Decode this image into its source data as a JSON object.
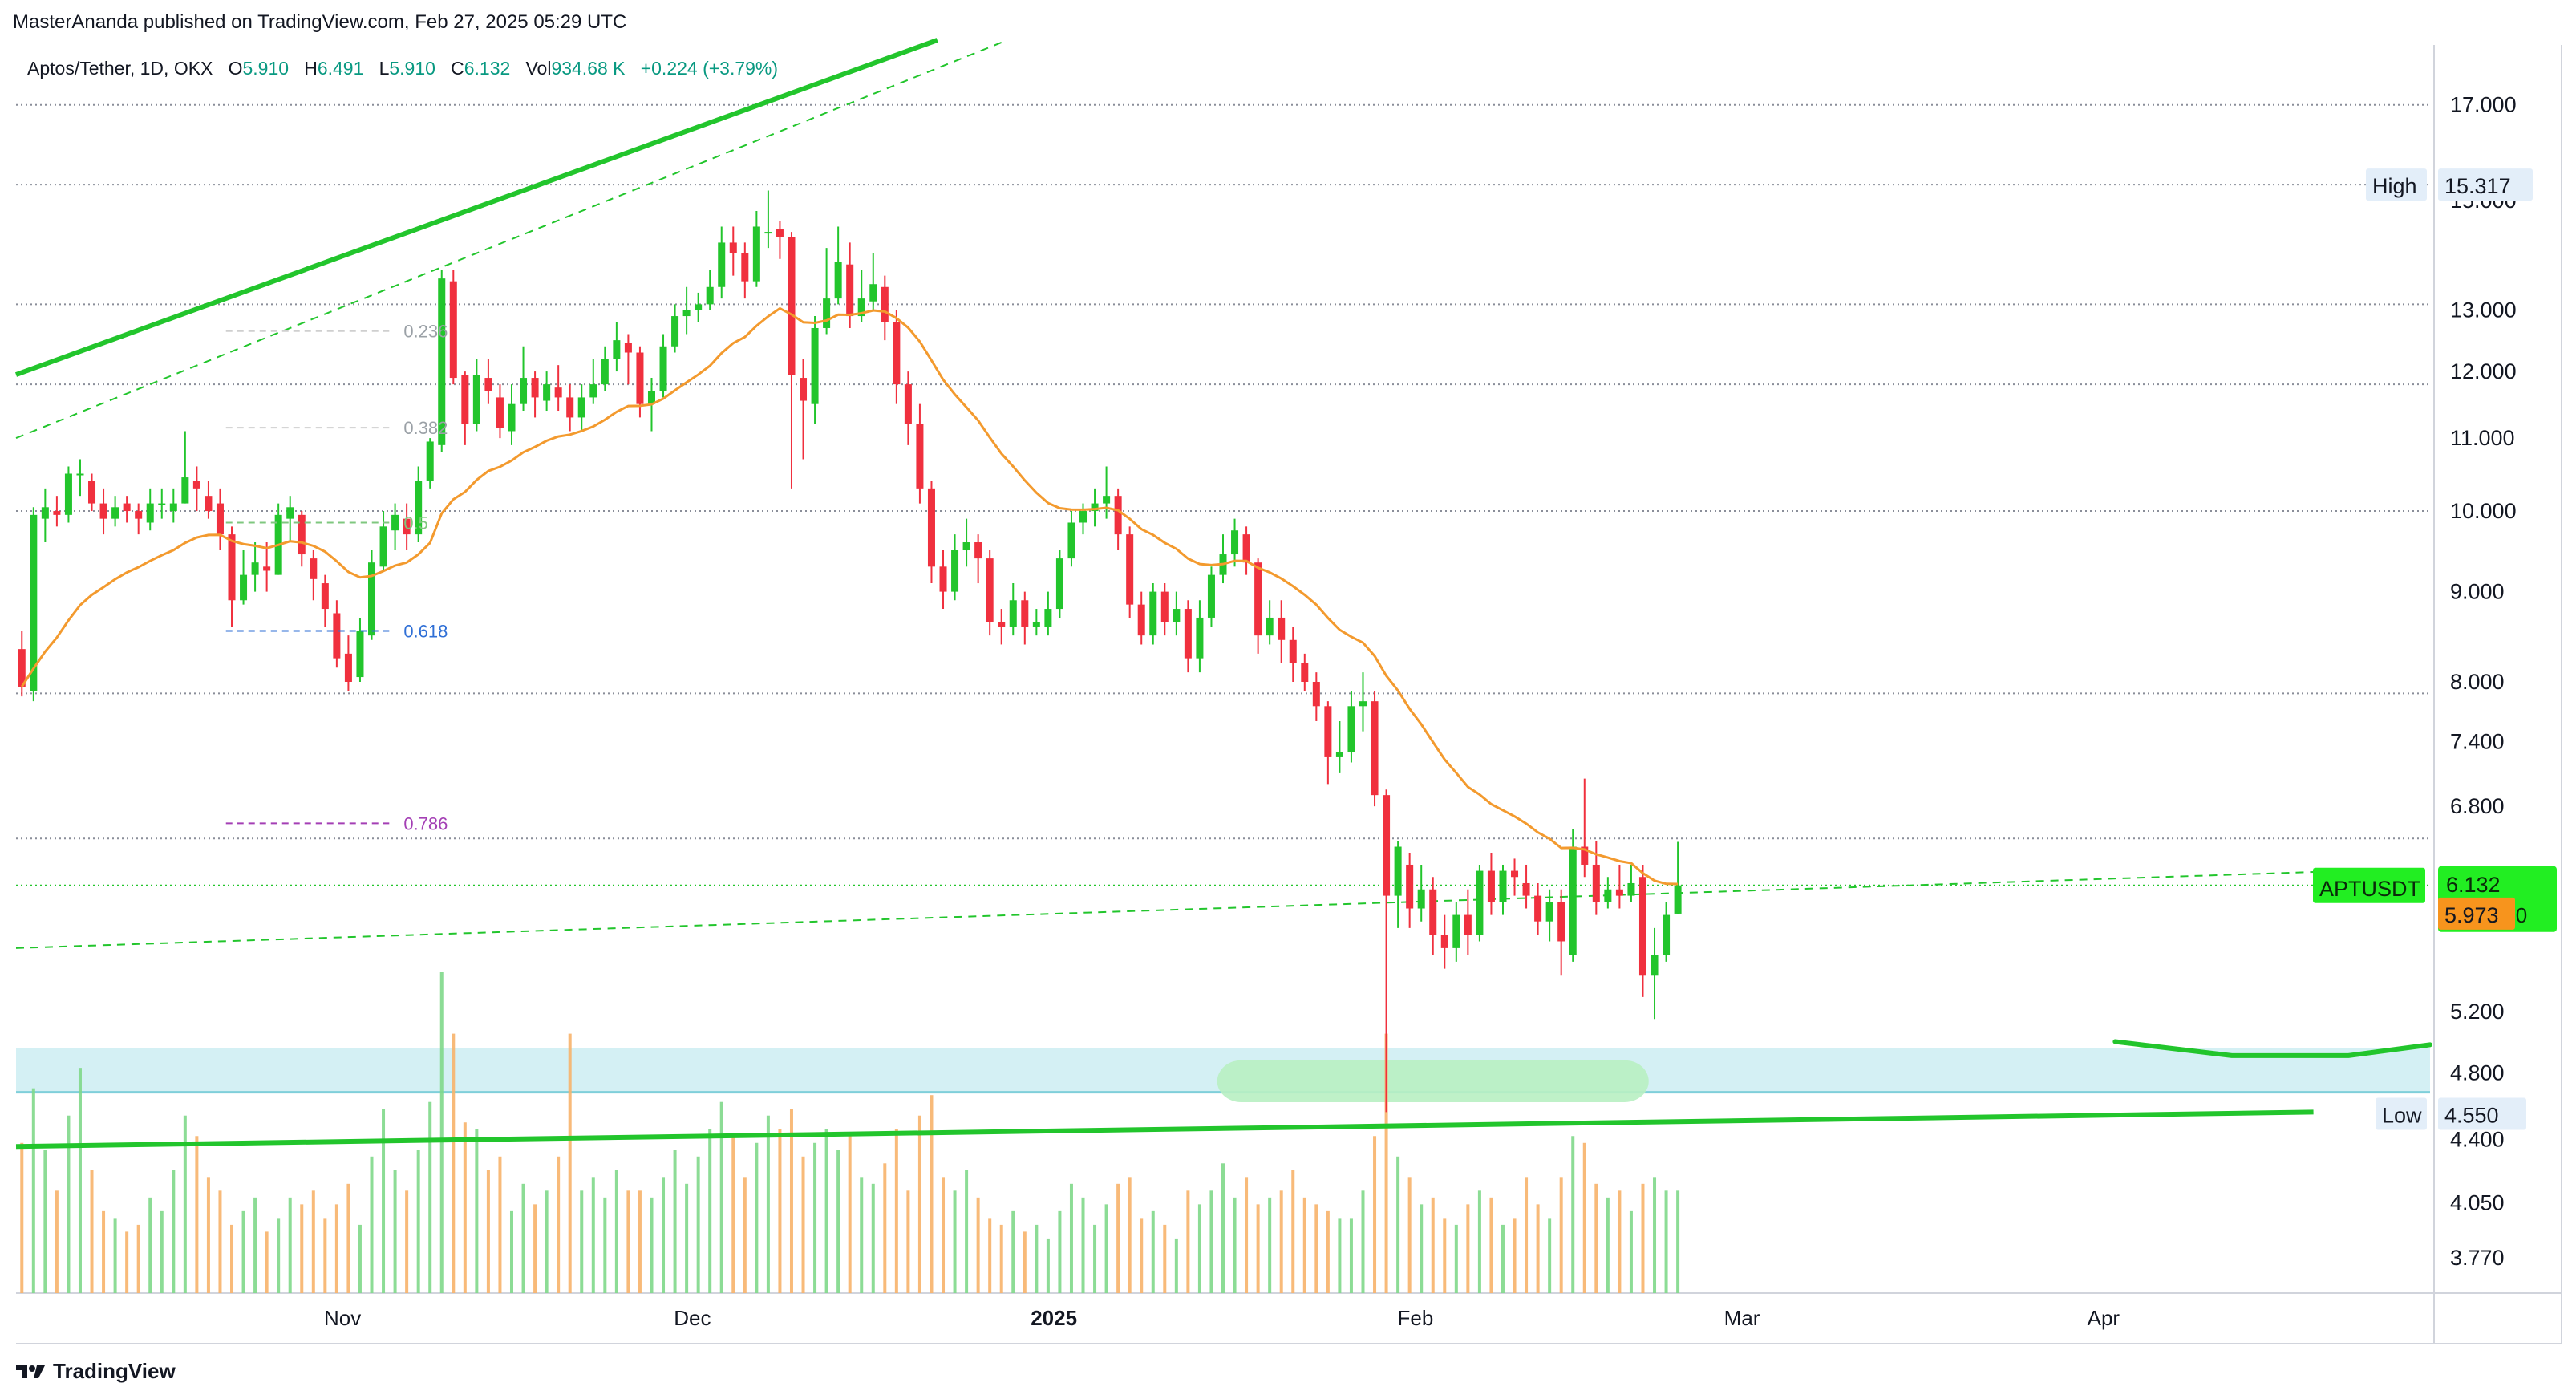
{
  "publisher_line": "MasterAnanda published on TradingView.com, Feb 27, 2025 05:29 UTC",
  "symbol": {
    "name": "Aptos/Tether, 1D, OKX",
    "open_label": "O",
    "open": "5.910",
    "high_label": "H",
    "high": "6.491",
    "low_label": "L",
    "low": "5.910",
    "close_label": "C",
    "close": "6.132",
    "volume_label": "Vol",
    "volume": "934.68 K",
    "change": "+0.224 (+3.79%)"
  },
  "colors": {
    "up": "#22c52c",
    "down": "#f0303e",
    "ema": "#f39a2e",
    "trendline": "#22c52c",
    "support_zone": "#d4f0f4",
    "support_line": "#7fcfda",
    "target_zone": "#b8f0c2",
    "fib_label": "#8fbf8f",
    "fib_0618": "#2f6fd6",
    "fib_0786": "#a43fb5",
    "price_tag_bg": "#22ee22",
    "ema_tag_bg": "#f7941d",
    "hl_tag_bg": "#e3eef9"
  },
  "footer": {
    "brand": "TradingView"
  },
  "chart_data": {
    "type": "candlestick",
    "symbol": "APTUSDT",
    "timeframe": "1D",
    "scale": "log",
    "ylim": [
      3.6,
      18.5
    ],
    "x_start": "2024-10-04",
    "x_end": "2025-04-29",
    "y_tick_labels": [
      "17.000",
      "15.000",
      "13.000",
      "12.000",
      "11.000",
      "10.000",
      "9.000",
      "8.000",
      "7.400",
      "6.800",
      "5.200",
      "4.800",
      "4.400",
      "4.050",
      "3.770"
    ],
    "x_tick_labels": [
      {
        "date": "2024-11-01",
        "label": "Nov"
      },
      {
        "date": "2024-12-01",
        "label": "Dec"
      },
      {
        "date": "2025-01-01",
        "label": "2025",
        "bold": true
      },
      {
        "date": "2025-02-01",
        "label": "Feb"
      },
      {
        "date": "2025-03-01",
        "label": "Mar"
      },
      {
        "date": "2025-04-01",
        "label": "Apr"
      }
    ],
    "horizontal_levels": [
      17.0,
      15.317,
      13.1,
      11.8,
      10.0,
      7.88,
      6.52,
      6.132
    ],
    "fib_levels": [
      {
        "label": "0.236",
        "price": 12.65,
        "color": "#cfcfcf"
      },
      {
        "label": "0.382",
        "price": 11.15,
        "color": "#cfcfcf"
      },
      {
        "label": "0.5",
        "price": 9.85,
        "color": "#7fc77f"
      },
      {
        "label": "0.618",
        "price": 8.55,
        "color": "#2f6fd6"
      },
      {
        "label": "0.786",
        "price": 6.65,
        "color": "#a43fb5"
      }
    ],
    "price_tags": {
      "high": {
        "label": "High",
        "value": "15.317"
      },
      "low": {
        "label": "Low",
        "value": "4.550"
      },
      "last": {
        "label": "APTUSDT",
        "value": "6.132",
        "countdown": "18:30:40"
      },
      "ema": {
        "value": "5.973"
      }
    },
    "support_zone": [
      4.68,
      4.96
    ],
    "target_zone": [
      4.62,
      4.88
    ],
    "target_zone_dates": [
      "2025-01-15",
      "2025-02-21"
    ],
    "trendlines": [
      {
        "style": "solid",
        "from": {
          "date": "2024-10-04",
          "price": 11.95
        },
        "to": {
          "date": "2024-12-22",
          "price": 18.5
        }
      },
      {
        "style": "dashed",
        "from": {
          "date": "2024-10-04",
          "price": 11.0
        },
        "to": {
          "date": "2024-12-28",
          "price": 18.5
        }
      },
      {
        "style": "dashed",
        "from": {
          "date": "2024-10-04",
          "price": 5.65
        },
        "to": {
          "date": "2025-04-22",
          "price": 6.25
        }
      },
      {
        "style": "solid",
        "from": {
          "date": "2024-10-04",
          "price": 4.36
        },
        "to": {
          "date": "2025-04-19",
          "price": 4.56
        }
      }
    ],
    "projection_curve": [
      {
        "date": "2025-04-02",
        "price": 5.0
      },
      {
        "date": "2025-04-12",
        "price": 4.91
      },
      {
        "date": "2025-04-22",
        "price": 4.91
      },
      {
        "date": "2025-04-29",
        "price": 4.98
      }
    ],
    "candles": [
      [
        8.35,
        7.95,
        8.55,
        7.85,
        220
      ],
      [
        7.9,
        9.95,
        10.05,
        7.8,
        300
      ],
      [
        9.9,
        10.05,
        10.3,
        9.6,
        210
      ],
      [
        10.0,
        9.95,
        10.2,
        9.8,
        150
      ],
      [
        9.95,
        10.5,
        10.6,
        9.85,
        260
      ],
      [
        10.5,
        10.5,
        10.7,
        10.2,
        330
      ],
      [
        10.4,
        10.1,
        10.5,
        10.0,
        180
      ],
      [
        10.1,
        9.9,
        10.3,
        9.7,
        120
      ],
      [
        9.9,
        10.05,
        10.2,
        9.8,
        110
      ],
      [
        10.1,
        10.0,
        10.2,
        9.85,
        90
      ],
      [
        10.0,
        9.9,
        10.1,
        9.7,
        100
      ],
      [
        9.85,
        10.1,
        10.3,
        9.75,
        140
      ],
      [
        10.1,
        10.1,
        10.3,
        9.9,
        120
      ],
      [
        10.0,
        10.1,
        10.3,
        9.85,
        180
      ],
      [
        10.1,
        10.45,
        11.1,
        10.1,
        260
      ],
      [
        10.4,
        10.3,
        10.6,
        10.0,
        230
      ],
      [
        10.2,
        10.0,
        10.4,
        9.9,
        170
      ],
      [
        10.1,
        9.7,
        10.3,
        9.5,
        150
      ],
      [
        9.7,
        8.9,
        9.8,
        8.6,
        100
      ],
      [
        8.9,
        9.2,
        9.5,
        8.85,
        120
      ],
      [
        9.2,
        9.35,
        9.6,
        9.0,
        140
      ],
      [
        9.3,
        9.25,
        9.6,
        9.0,
        90
      ],
      [
        9.2,
        9.95,
        10.1,
        9.2,
        110
      ],
      [
        9.9,
        10.05,
        10.2,
        9.6,
        140
      ],
      [
        9.95,
        9.45,
        10.0,
        9.3,
        130
      ],
      [
        9.4,
        9.15,
        9.5,
        8.9,
        150
      ],
      [
        9.1,
        8.8,
        9.2,
        8.6,
        110
      ],
      [
        8.75,
        8.25,
        8.9,
        8.15,
        130
      ],
      [
        8.3,
        8.0,
        8.5,
        7.9,
        160
      ],
      [
        8.05,
        8.55,
        8.7,
        8.0,
        100
      ],
      [
        8.5,
        9.35,
        9.5,
        8.45,
        200
      ],
      [
        9.3,
        9.8,
        10.0,
        9.25,
        270
      ],
      [
        9.75,
        9.95,
        10.1,
        9.5,
        180
      ],
      [
        9.9,
        9.7,
        10.1,
        9.5,
        150
      ],
      [
        9.7,
        10.4,
        10.6,
        9.6,
        210
      ],
      [
        10.4,
        10.95,
        11.0,
        10.3,
        280
      ],
      [
        10.9,
        13.55,
        13.7,
        10.8,
        470
      ],
      [
        13.5,
        11.9,
        13.7,
        11.8,
        380
      ],
      [
        11.95,
        11.2,
        12.0,
        10.9,
        250
      ],
      [
        11.2,
        11.95,
        12.2,
        11.1,
        240
      ],
      [
        11.9,
        11.7,
        12.2,
        11.5,
        180
      ],
      [
        11.6,
        11.15,
        11.8,
        11.0,
        200
      ],
      [
        11.1,
        11.5,
        11.8,
        10.9,
        120
      ],
      [
        11.5,
        11.9,
        12.4,
        11.4,
        160
      ],
      [
        11.9,
        11.6,
        12.0,
        11.3,
        130
      ],
      [
        11.55,
        11.8,
        12.0,
        11.4,
        150
      ],
      [
        11.75,
        11.6,
        12.1,
        11.4,
        200
      ],
      [
        11.6,
        11.3,
        11.8,
        11.1,
        380
      ],
      [
        11.3,
        11.6,
        11.8,
        11.1,
        150
      ],
      [
        11.6,
        11.8,
        12.2,
        11.5,
        170
      ],
      [
        11.8,
        12.2,
        12.4,
        11.7,
        140
      ],
      [
        12.2,
        12.5,
        12.8,
        12.0,
        180
      ],
      [
        12.45,
        12.3,
        12.6,
        11.8,
        150
      ],
      [
        12.3,
        11.5,
        12.4,
        11.3,
        150
      ],
      [
        11.5,
        11.7,
        11.9,
        11.1,
        140
      ],
      [
        11.7,
        12.4,
        12.6,
        11.6,
        170
      ],
      [
        12.4,
        12.9,
        13.1,
        12.3,
        210
      ],
      [
        12.9,
        13.0,
        13.4,
        12.6,
        160
      ],
      [
        13.0,
        13.1,
        13.3,
        12.8,
        200
      ],
      [
        13.1,
        13.4,
        13.7,
        13.0,
        240
      ],
      [
        13.4,
        14.2,
        14.5,
        13.2,
        280
      ],
      [
        14.2,
        14.0,
        14.5,
        13.6,
        230
      ],
      [
        14.0,
        13.5,
        14.2,
        13.2,
        170
      ],
      [
        13.5,
        14.5,
        14.8,
        13.4,
        220
      ],
      [
        14.4,
        14.4,
        15.2,
        14.1,
        260
      ],
      [
        14.45,
        14.3,
        14.6,
        13.9,
        240
      ],
      [
        14.3,
        11.95,
        14.4,
        10.3,
        270
      ],
      [
        11.9,
        11.55,
        12.2,
        10.7,
        200
      ],
      [
        11.5,
        12.7,
        12.9,
        11.2,
        220
      ],
      [
        12.7,
        13.2,
        14.1,
        12.6,
        240
      ],
      [
        13.2,
        13.85,
        14.5,
        13.1,
        210
      ],
      [
        13.8,
        12.9,
        14.2,
        12.7,
        230
      ],
      [
        12.9,
        13.2,
        13.7,
        12.8,
        170
      ],
      [
        13.15,
        13.45,
        14.0,
        13.0,
        160
      ],
      [
        13.4,
        12.8,
        13.6,
        12.5,
        190
      ],
      [
        12.8,
        11.8,
        13.0,
        11.5,
        240
      ],
      [
        11.8,
        11.2,
        12.0,
        10.9,
        150
      ],
      [
        11.2,
        10.3,
        11.5,
        10.1,
        260
      ],
      [
        10.3,
        9.3,
        10.4,
        9.1,
        290
      ],
      [
        9.3,
        9.0,
        9.5,
        8.8,
        170
      ],
      [
        9.0,
        9.5,
        9.7,
        8.9,
        150
      ],
      [
        9.5,
        9.6,
        9.9,
        9.3,
        180
      ],
      [
        9.6,
        9.4,
        9.7,
        9.1,
        140
      ],
      [
        9.4,
        8.65,
        9.5,
        8.5,
        110
      ],
      [
        8.65,
        8.6,
        8.8,
        8.4,
        100
      ],
      [
        8.6,
        8.9,
        9.1,
        8.5,
        120
      ],
      [
        8.9,
        8.6,
        9.0,
        8.4,
        90
      ],
      [
        8.6,
        8.65,
        8.8,
        8.5,
        100
      ],
      [
        8.6,
        8.8,
        9.0,
        8.5,
        80
      ],
      [
        8.8,
        9.4,
        9.5,
        8.7,
        120
      ],
      [
        9.4,
        9.85,
        10.0,
        9.3,
        160
      ],
      [
        9.85,
        10.0,
        10.1,
        9.7,
        140
      ],
      [
        10.0,
        10.1,
        10.3,
        9.8,
        100
      ],
      [
        10.1,
        10.2,
        10.6,
        9.9,
        130
      ],
      [
        10.2,
        9.7,
        10.3,
        9.5,
        160
      ],
      [
        9.7,
        8.85,
        9.8,
        8.7,
        170
      ],
      [
        8.85,
        8.5,
        9.0,
        8.4,
        110
      ],
      [
        8.5,
        9.0,
        9.1,
        8.4,
        120
      ],
      [
        9.0,
        8.65,
        9.1,
        8.5,
        100
      ],
      [
        8.65,
        8.8,
        9.0,
        8.5,
        80
      ],
      [
        8.8,
        8.25,
        8.9,
        8.1,
        150
      ],
      [
        8.25,
        8.7,
        8.9,
        8.1,
        130
      ],
      [
        8.7,
        9.2,
        9.3,
        8.6,
        150
      ],
      [
        9.2,
        9.45,
        9.7,
        9.1,
        190
      ],
      [
        9.45,
        9.75,
        9.9,
        9.3,
        140
      ],
      [
        9.7,
        9.35,
        9.8,
        9.2,
        170
      ],
      [
        9.35,
        8.5,
        9.4,
        8.3,
        130
      ],
      [
        8.5,
        8.7,
        8.9,
        8.4,
        140
      ],
      [
        8.7,
        8.45,
        8.9,
        8.2,
        150
      ],
      [
        8.45,
        8.2,
        8.6,
        8.0,
        180
      ],
      [
        8.2,
        8.0,
        8.3,
        7.9,
        140
      ],
      [
        8.0,
        7.75,
        8.1,
        7.6,
        130
      ],
      [
        7.75,
        7.25,
        7.8,
        7.0,
        120
      ],
      [
        7.25,
        7.3,
        7.6,
        7.1,
        110
      ],
      [
        7.3,
        7.75,
        7.9,
        7.2,
        110
      ],
      [
        7.75,
        7.8,
        8.1,
        7.5,
        150
      ],
      [
        7.8,
        6.9,
        7.9,
        6.8,
        230
      ],
      [
        6.9,
        6.05,
        6.95,
        4.56,
        380
      ],
      [
        6.05,
        6.45,
        6.5,
        5.8,
        200
      ],
      [
        6.3,
        5.95,
        6.4,
        5.8,
        170
      ],
      [
        5.95,
        6.1,
        6.3,
        5.85,
        130
      ],
      [
        6.1,
        5.75,
        6.2,
        5.6,
        140
      ],
      [
        5.75,
        5.65,
        5.9,
        5.5,
        110
      ],
      [
        5.65,
        5.9,
        6.0,
        5.55,
        100
      ],
      [
        5.9,
        5.75,
        6.1,
        5.6,
        130
      ],
      [
        5.75,
        6.25,
        6.3,
        5.7,
        150
      ],
      [
        6.25,
        6.0,
        6.4,
        5.9,
        140
      ],
      [
        6.0,
        6.25,
        6.3,
        5.9,
        100
      ],
      [
        6.25,
        6.2,
        6.35,
        6.05,
        110
      ],
      [
        6.15,
        6.05,
        6.3,
        5.95,
        170
      ],
      [
        6.05,
        5.85,
        6.15,
        5.75,
        130
      ],
      [
        5.85,
        6.0,
        6.1,
        5.7,
        110
      ],
      [
        6.0,
        5.7,
        6.1,
        5.45,
        170
      ],
      [
        5.6,
        6.45,
        6.6,
        5.55,
        230
      ],
      [
        6.45,
        6.3,
        7.05,
        6.2,
        220
      ],
      [
        6.3,
        6.0,
        6.5,
        5.9,
        160
      ],
      [
        6.0,
        6.1,
        6.2,
        5.95,
        140
      ],
      [
        6.1,
        6.05,
        6.3,
        5.95,
        150
      ],
      [
        6.05,
        6.15,
        6.3,
        6.0,
        120
      ],
      [
        6.2,
        5.45,
        6.3,
        5.3,
        160
      ],
      [
        5.45,
        5.6,
        5.8,
        5.15,
        170
      ],
      [
        5.6,
        5.9,
        6.0,
        5.55,
        150
      ],
      [
        5.91,
        6.132,
        6.491,
        5.91,
        150
      ]
    ],
    "ema_length": 20
  }
}
